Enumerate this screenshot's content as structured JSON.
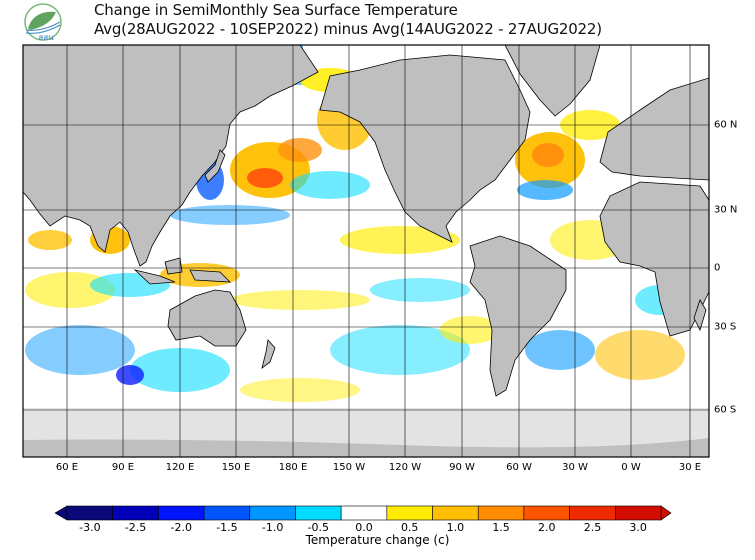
{
  "header": {
    "logo_text": "สสน",
    "title_line1": "Change in SemiMonthly Sea Surface Temperature",
    "title_line2": "Avg(28AUG2022 - 10SEP2022) minus Avg(14AUG2022 - 27AUG2022)"
  },
  "map": {
    "longitude_labels": [
      "60 E",
      "90 E",
      "120 E",
      "150 E",
      "180 E",
      "150 W",
      "120 W",
      "90 W",
      "60 W",
      "30 W",
      "0 W",
      "30 E"
    ],
    "latitude_labels": [
      "60 N",
      "30 N",
      "0",
      "30 S",
      "60 S"
    ],
    "land_color": "#bfbfbf",
    "ice_color": "#e3e3e3"
  },
  "colorbar": {
    "title": "Temperature change  (c)",
    "labels": [
      "-3.0",
      "-2.5",
      "-2.0",
      "-1.5",
      "-1.0",
      "-0.5",
      "0.0",
      "0.5",
      "1.0",
      "1.5",
      "2.0",
      "2.5",
      "3.0"
    ],
    "colors": [
      "#08087a",
      "#0000b8",
      "#0014ff",
      "#0055ff",
      "#0096ff",
      "#00dcff",
      "#ffffff",
      "#ffec00",
      "#ffbf00",
      "#ff8c00",
      "#ff5500",
      "#f02a00",
      "#d20c00"
    ]
  }
}
